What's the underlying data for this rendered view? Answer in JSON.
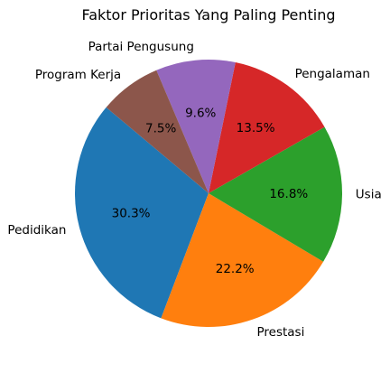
{
  "chart_data": {
    "type": "pie",
    "title": "Faktor Prioritas Yang Paling Penting",
    "start_angle_deg": 140,
    "direction": "counterclockwise",
    "slices": [
      {
        "label": "Pedidikan",
        "value": 30.3,
        "pct_label": "30.3%",
        "color": "#1f77b4"
      },
      {
        "label": "Prestasi",
        "value": 22.2,
        "pct_label": "22.2%",
        "color": "#ff7f0e"
      },
      {
        "label": "Usia",
        "value": 16.8,
        "pct_label": "16.8%",
        "color": "#2ca02c"
      },
      {
        "label": "Pengalaman",
        "value": 13.5,
        "pct_label": "13.5%",
        "color": "#d62728"
      },
      {
        "label": "Partai Pengusung",
        "value": 9.6,
        "pct_label": "9.6%",
        "color": "#9467bd"
      },
      {
        "label": "Program Kerja",
        "value": 7.5,
        "pct_label": "7.5%",
        "color": "#8c564b"
      }
    ]
  }
}
